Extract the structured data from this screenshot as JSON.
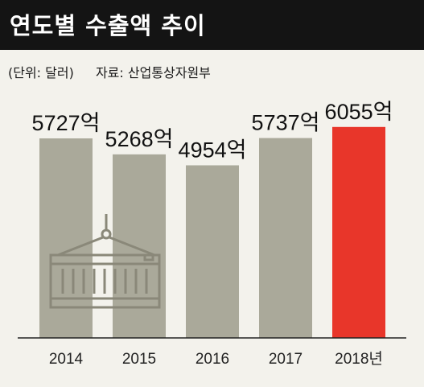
{
  "header": {
    "title": "연도별 수출액 추이",
    "unit": "(단위: 달러)",
    "source": "자료: 산업통상자원부"
  },
  "chart_data": {
    "type": "bar",
    "categories": [
      "2014",
      "2015",
      "2016",
      "2017",
      "2018년"
    ],
    "values": [
      5727,
      5268,
      4954,
      5737,
      6055
    ],
    "value_labels": [
      "5727억",
      "5268억",
      "4954억",
      "5737억",
      "6055억"
    ],
    "colors": [
      "#aaa99a",
      "#aaa99a",
      "#aaa99a",
      "#aaa99a",
      "#e8362a"
    ],
    "title": "연도별 수출액 추이",
    "xlabel": "",
    "ylabel": "",
    "grid": false,
    "legend": "none"
  },
  "decoration": {
    "icon": "shipping-container-icon"
  }
}
